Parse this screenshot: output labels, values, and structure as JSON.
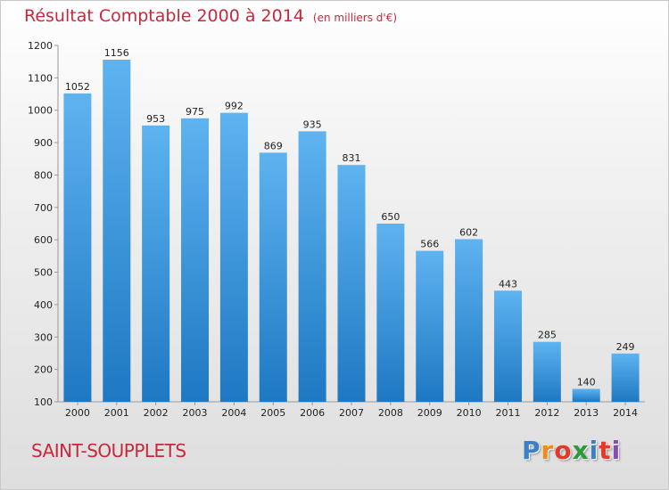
{
  "title": "Résultat Comptable 2000 à 2014",
  "subtitle": "(en milliers d'€)",
  "place": "SAINT-SOUPPLETS",
  "logo": {
    "letters": [
      "P",
      "r",
      "o",
      "x",
      "i",
      "t",
      "i"
    ],
    "colors": [
      "#3a7fc8",
      "#f08a1c",
      "#e23a2a",
      "#2a9a3c",
      "#3a7fc8",
      "#e23a2a",
      "#8a4ab8"
    ]
  },
  "colors": {
    "title": "#c8283c",
    "bar_top": "#5eb3f0",
    "bar_bottom": "#1e78c2"
  },
  "chart_data": {
    "type": "bar",
    "categories": [
      "2000",
      "2001",
      "2002",
      "2003",
      "2004",
      "2005",
      "2006",
      "2007",
      "2008",
      "2009",
      "2010",
      "2011",
      "2012",
      "2013",
      "2014"
    ],
    "values": [
      1052,
      1156,
      953,
      975,
      992,
      869,
      935,
      831,
      650,
      566,
      602,
      443,
      285,
      140,
      249
    ],
    "ylim": [
      100,
      1200
    ],
    "yticks": [
      100,
      200,
      300,
      400,
      500,
      600,
      700,
      800,
      900,
      1000,
      1100,
      1200
    ],
    "grid": false,
    "data_labels": true
  }
}
